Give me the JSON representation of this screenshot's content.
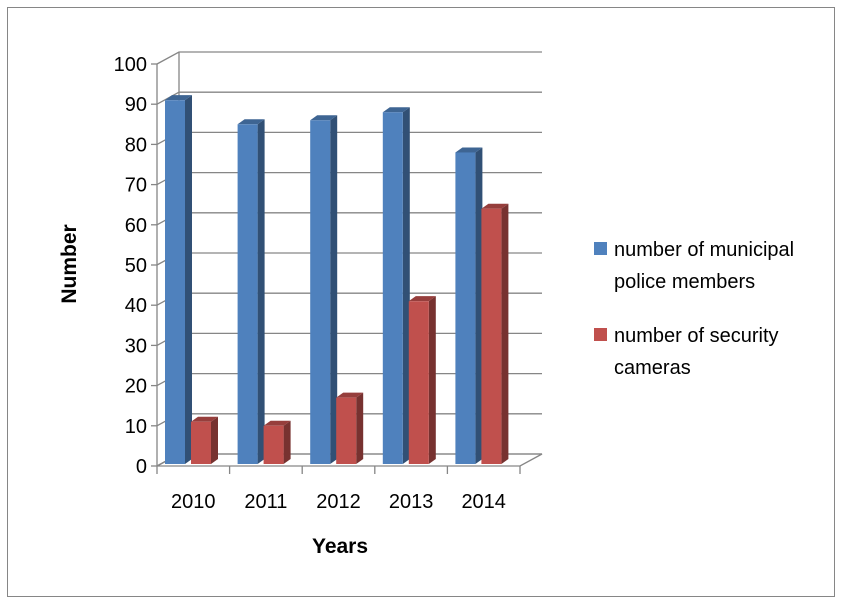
{
  "chart_data": {
    "type": "bar",
    "style": "3d-clustered-column",
    "categories": [
      "2010",
      "2011",
      "2012",
      "2013",
      "2014"
    ],
    "series": [
      {
        "name": "number of municipal police members",
        "legend_lines": [
          "number of municipal",
          "police members"
        ],
        "color": "#4F81BD",
        "values": [
          91,
          85,
          86,
          88,
          78
        ]
      },
      {
        "name": "number of security cameras",
        "legend_lines": [
          "number of security",
          "cameras"
        ],
        "color": "#C0504D",
        "values": [
          11,
          10,
          17,
          41,
          64
        ]
      }
    ],
    "xlabel": "Years",
    "ylabel": "Number",
    "ylim": [
      0,
      100
    ],
    "yticks": [
      0,
      10,
      20,
      30,
      40,
      50,
      60,
      70,
      80,
      90,
      100
    ],
    "grid": true,
    "legend_position": "right"
  }
}
